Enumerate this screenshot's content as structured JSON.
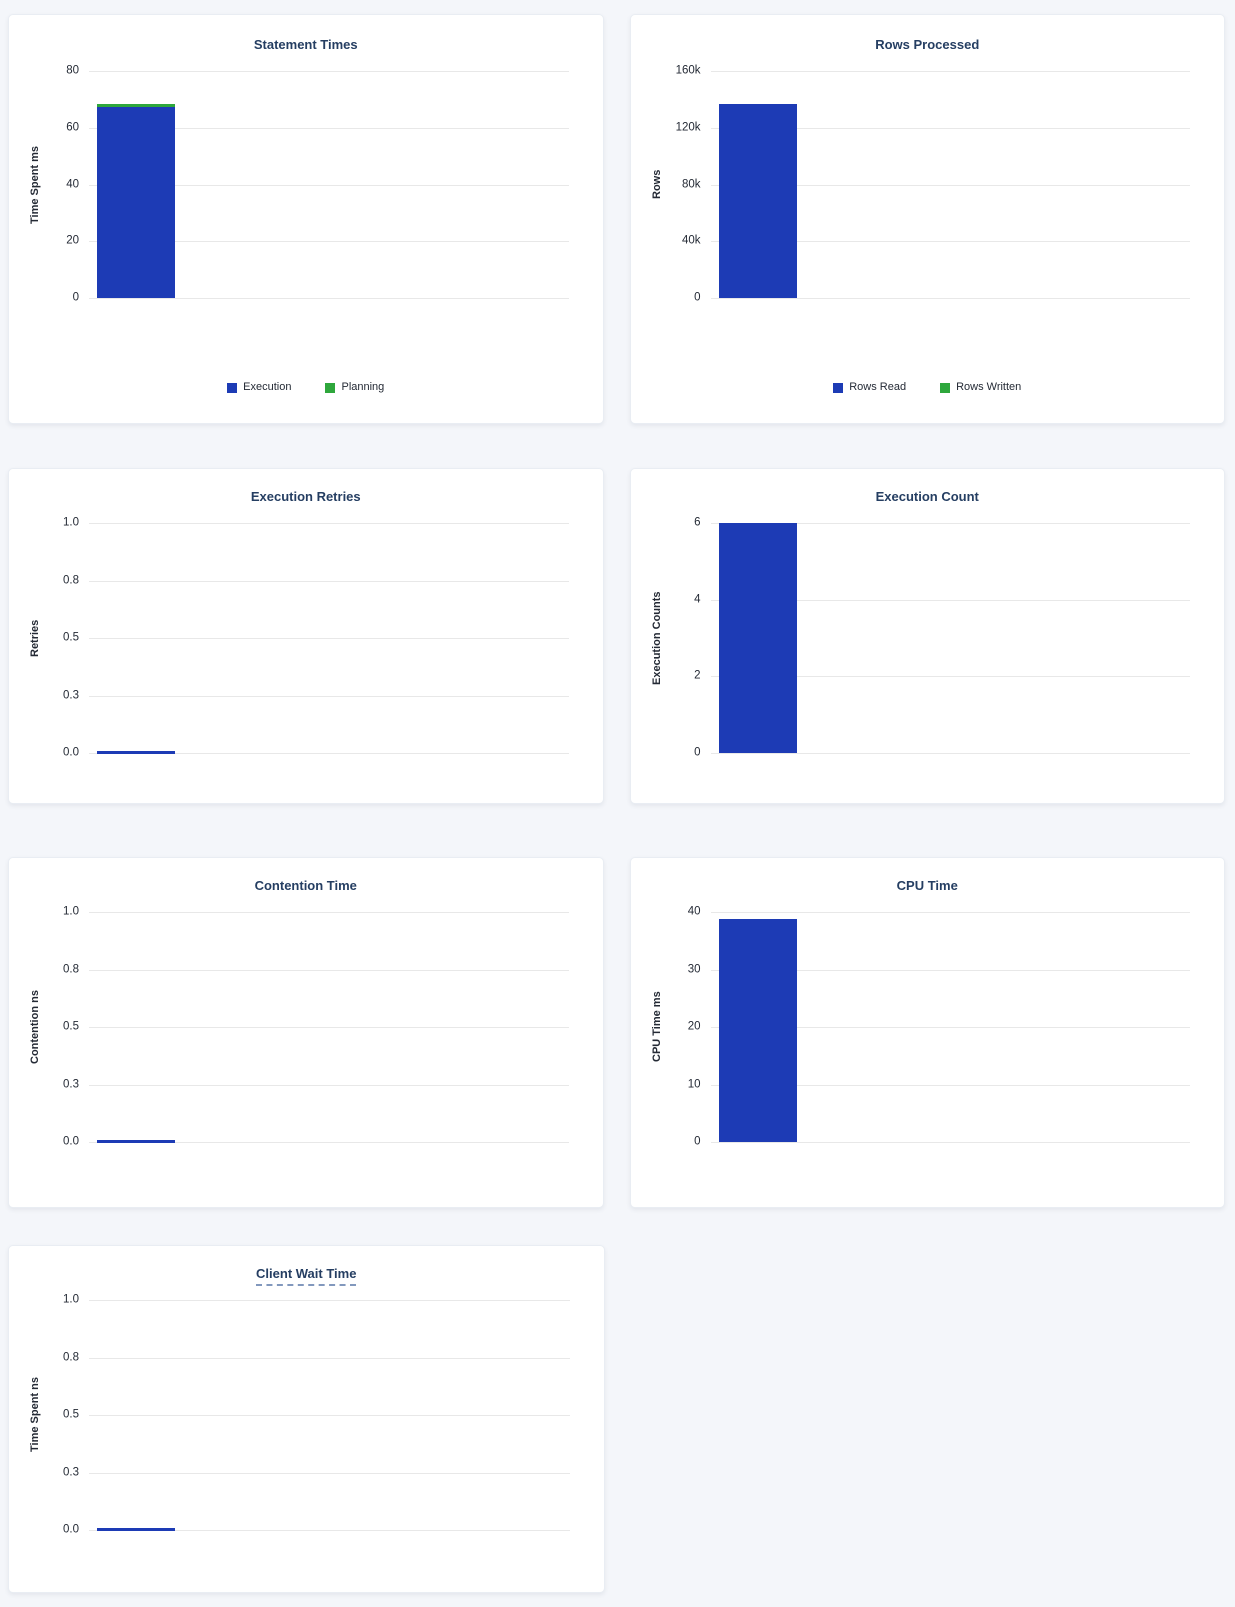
{
  "page": {
    "background": "#f4f6fa",
    "card_background": "#ffffff",
    "card_border": "#e9edf3"
  },
  "colors": {
    "title_text": "#253e62",
    "axis_text": "#242a35",
    "gridline": "#e8e8e8",
    "bar_blue": "#1d3bb5",
    "bar_green": "#2ea73c",
    "tooltip_underline": "#8298bd"
  },
  "chart_data": [
    {
      "id": "statement-times",
      "type": "bar",
      "title": "Statement Times",
      "title_has_tooltip": false,
      "ylabel": "Time Spent ms",
      "ylim": [
        0,
        80
      ],
      "grid": true,
      "stacked": true,
      "yticks": [
        {
          "value": 0,
          "label": "0"
        },
        {
          "value": 20,
          "label": "20"
        },
        {
          "value": 40,
          "label": "40"
        },
        {
          "value": 60,
          "label": "60"
        },
        {
          "value": 80,
          "label": "80"
        }
      ],
      "series": [
        {
          "name": "Execution",
          "color": "#1d3bb5",
          "value": 67.4
        },
        {
          "name": "Planning",
          "color": "#2ea73c",
          "value": 0.8
        }
      ],
      "legend": {
        "visible": true,
        "position": "bottom",
        "items": [
          "Execution",
          "Planning"
        ]
      }
    },
    {
      "id": "rows-processed",
      "type": "bar",
      "title": "Rows Processed",
      "title_has_tooltip": false,
      "ylabel": "Rows",
      "ylim": [
        0,
        160000
      ],
      "grid": true,
      "stacked": true,
      "yticks": [
        {
          "value": 0,
          "label": "0"
        },
        {
          "value": 40000,
          "label": "40k"
        },
        {
          "value": 80000,
          "label": "80k"
        },
        {
          "value": 120000,
          "label": "120k"
        },
        {
          "value": 160000,
          "label": "160k"
        }
      ],
      "series": [
        {
          "name": "Rows Read",
          "color": "#1d3bb5",
          "value": 137000
        },
        {
          "name": "Rows Written",
          "color": "#2ea73c",
          "value": 0
        }
      ],
      "legend": {
        "visible": true,
        "position": "bottom",
        "items": [
          "Rows Read",
          "Rows Written"
        ]
      }
    },
    {
      "id": "execution-retries",
      "type": "bar",
      "title": "Execution Retries",
      "title_has_tooltip": false,
      "ylabel": "Retries",
      "ylim": [
        0,
        1
      ],
      "grid": true,
      "stacked": false,
      "yticks": [
        {
          "value": 0,
          "label": "0.0"
        },
        {
          "value": 0.25,
          "label": "0.3"
        },
        {
          "value": 0.5,
          "label": "0.5"
        },
        {
          "value": 0.75,
          "label": "0.8"
        },
        {
          "value": 1,
          "label": "1.0"
        }
      ],
      "series": [
        {
          "color": "#1d3bb5",
          "value": 0
        }
      ],
      "legend": {
        "visible": false
      }
    },
    {
      "id": "execution-count",
      "type": "bar",
      "title": "Execution Count",
      "title_has_tooltip": false,
      "ylabel": "Execution Counts",
      "ylim": [
        0,
        6
      ],
      "grid": true,
      "stacked": false,
      "yticks": [
        {
          "value": 0,
          "label": "0"
        },
        {
          "value": 2,
          "label": "2"
        },
        {
          "value": 4,
          "label": "4"
        },
        {
          "value": 6,
          "label": "6"
        }
      ],
      "series": [
        {
          "color": "#1d3bb5",
          "value": 6
        }
      ],
      "legend": {
        "visible": false
      }
    },
    {
      "id": "contention-time",
      "type": "bar",
      "title": "Contention Time",
      "title_has_tooltip": false,
      "ylabel": "Contention ns",
      "ylim": [
        0,
        1
      ],
      "grid": true,
      "stacked": false,
      "yticks": [
        {
          "value": 0,
          "label": "0.0"
        },
        {
          "value": 0.25,
          "label": "0.3"
        },
        {
          "value": 0.5,
          "label": "0.5"
        },
        {
          "value": 0.75,
          "label": "0.8"
        },
        {
          "value": 1,
          "label": "1.0"
        }
      ],
      "series": [
        {
          "color": "#1d3bb5",
          "value": 0
        }
      ],
      "legend": {
        "visible": false
      }
    },
    {
      "id": "cpu-time",
      "type": "bar",
      "title": "CPU Time",
      "title_has_tooltip": false,
      "ylabel": "CPU Time ms",
      "ylim": [
        0,
        40
      ],
      "grid": true,
      "stacked": false,
      "yticks": [
        {
          "value": 0,
          "label": "0"
        },
        {
          "value": 10,
          "label": "10"
        },
        {
          "value": 20,
          "label": "20"
        },
        {
          "value": 30,
          "label": "30"
        },
        {
          "value": 40,
          "label": "40"
        }
      ],
      "series": [
        {
          "color": "#1d3bb5",
          "value": 38.8
        }
      ],
      "legend": {
        "visible": false
      }
    },
    {
      "id": "client-wait-time",
      "type": "bar",
      "title": "Client Wait Time",
      "title_has_tooltip": true,
      "ylabel": "Time Spent ns",
      "ylim": [
        0,
        1
      ],
      "grid": true,
      "stacked": false,
      "yticks": [
        {
          "value": 0,
          "label": "0.0"
        },
        {
          "value": 0.25,
          "label": "0.3"
        },
        {
          "value": 0.5,
          "label": "0.5"
        },
        {
          "value": 0.75,
          "label": "0.8"
        },
        {
          "value": 1,
          "label": "1.0"
        }
      ],
      "series": [
        {
          "color": "#1d3bb5",
          "value": 0
        }
      ],
      "legend": {
        "visible": false
      }
    }
  ]
}
